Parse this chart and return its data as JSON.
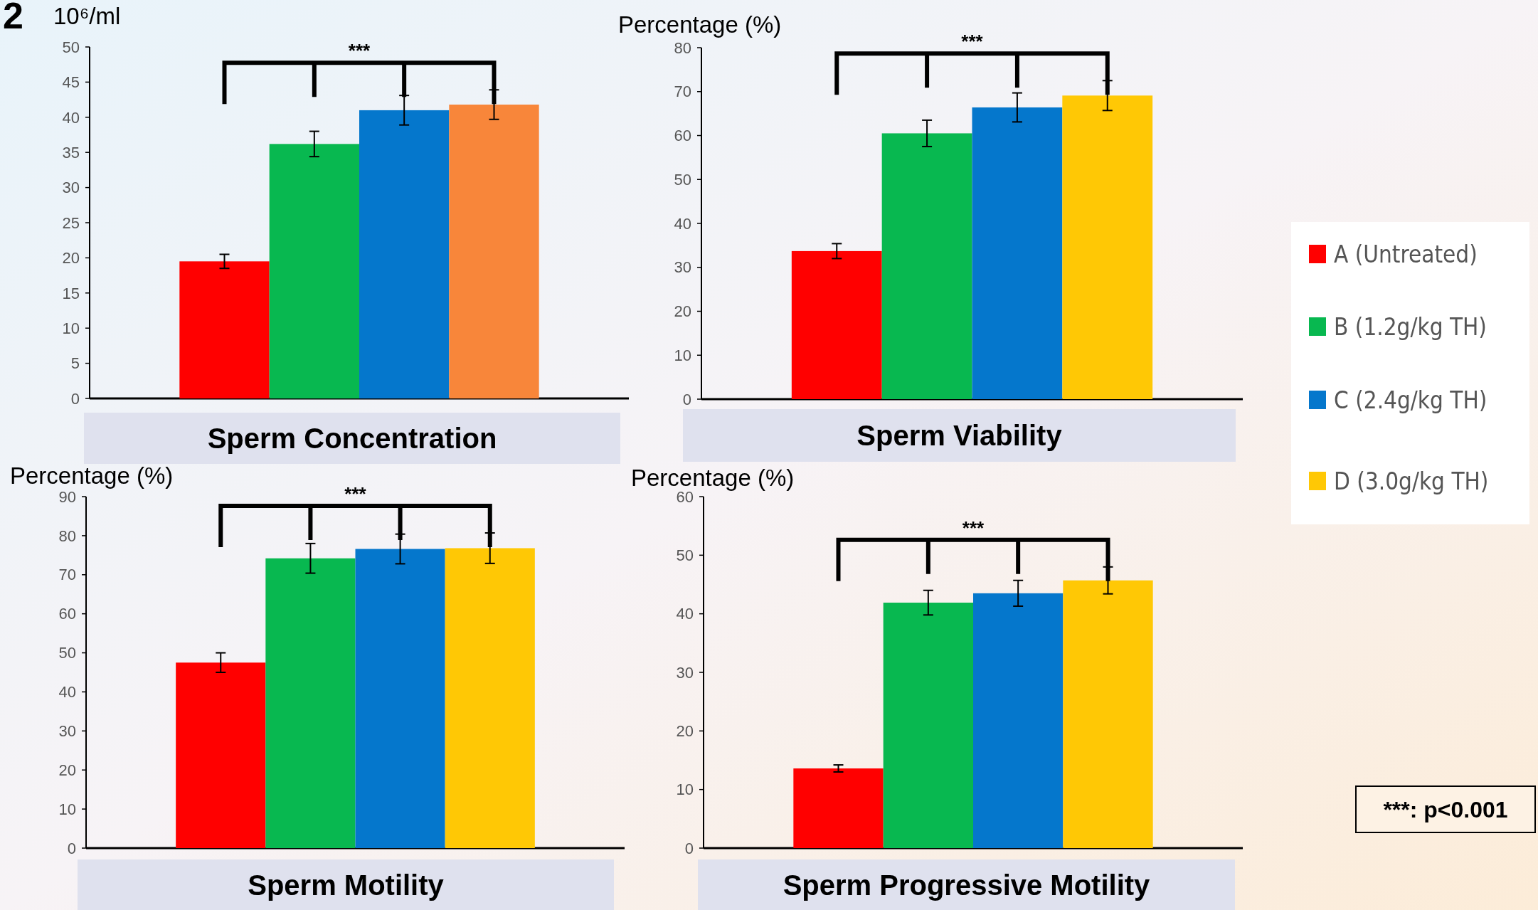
{
  "chart_data": [
    {
      "type": "bar",
      "title": "Sperm Concentration",
      "ylabel": "10⁶/ml",
      "categories": [
        null
      ],
      "ylim": [
        0,
        50
      ],
      "yticks": [
        0,
        5,
        10,
        15,
        20,
        25,
        30,
        35,
        40,
        45,
        50
      ],
      "annotations": [
        "***",
        "2"
      ],
      "series": [
        {
          "color": "#ff0000",
          "values": [
            19.5
          ],
          "errors": [
            1.0
          ]
        },
        {
          "color": "#08b850",
          "values": [
            36.2
          ],
          "errors": [
            1.8
          ]
        },
        {
          "color": "#0577cc",
          "values": [
            41.0
          ],
          "errors": [
            2.1
          ]
        },
        {
          "color": "#f8863a",
          "values": [
            41.8
          ],
          "errors": [
            2.1
          ]
        }
      ]
    },
    {
      "type": "bar",
      "title": "Sperm Viability",
      "ylabel": "Percentage (%)",
      "categories": [
        null
      ],
      "ylim": [
        0,
        80
      ],
      "yticks": [
        0,
        10,
        20,
        30,
        40,
        50,
        60,
        70,
        80
      ],
      "annotations": [
        "***"
      ],
      "legend": "right",
      "series": [
        {
          "name": "A (Untreated)",
          "color": "#ff0000",
          "values": [
            33.7
          ],
          "errors": [
            1.7
          ]
        },
        {
          "name": "B (1.2g/kg TH)",
          "color": "#08b850",
          "values": [
            60.5
          ],
          "errors": [
            3.0
          ]
        },
        {
          "name": "C (2.4g/kg TH)",
          "color": "#0577cc",
          "values": [
            66.4
          ],
          "errors": [
            3.3
          ]
        },
        {
          "name": "D (3.0g/kg TH)",
          "color": "#ffc805",
          "values": [
            69.1
          ],
          "errors": [
            3.4
          ]
        }
      ]
    },
    {
      "type": "bar",
      "title": "Sperm Motility",
      "ylabel": "Percentage (%)",
      "categories": [
        null
      ],
      "ylim": [
        0,
        90
      ],
      "yticks": [
        0,
        10,
        20,
        30,
        40,
        50,
        60,
        70,
        80,
        90
      ],
      "annotations": [
        "***"
      ],
      "series": [
        {
          "color": "#ff0000",
          "values": [
            47.5
          ],
          "errors": [
            2.5
          ]
        },
        {
          "color": "#08b850",
          "values": [
            74.2
          ],
          "errors": [
            3.8
          ]
        },
        {
          "color": "#0577cc",
          "values": [
            76.6
          ],
          "errors": [
            3.8
          ]
        },
        {
          "color": "#ffc805",
          "values": [
            76.8
          ],
          "errors": [
            3.9
          ]
        }
      ]
    },
    {
      "type": "bar",
      "title": "Sperm Progressive Motility",
      "ylabel": "Percentage (%)",
      "categories": [
        null
      ],
      "ylim": [
        0,
        60
      ],
      "yticks": [
        0,
        10,
        20,
        30,
        40,
        50,
        60
      ],
      "annotations": [
        "***",
        "***: p<0.001"
      ],
      "series": [
        {
          "color": "#ff0000",
          "values": [
            13.6
          ],
          "errors": [
            0.6
          ]
        },
        {
          "color": "#08b850",
          "values": [
            41.9
          ],
          "errors": [
            2.1
          ]
        },
        {
          "color": "#0577cc",
          "values": [
            43.5
          ],
          "errors": [
            2.2
          ]
        },
        {
          "color": "#ffc805",
          "values": [
            45.7
          ],
          "errors": [
            2.3
          ]
        }
      ]
    }
  ]
}
